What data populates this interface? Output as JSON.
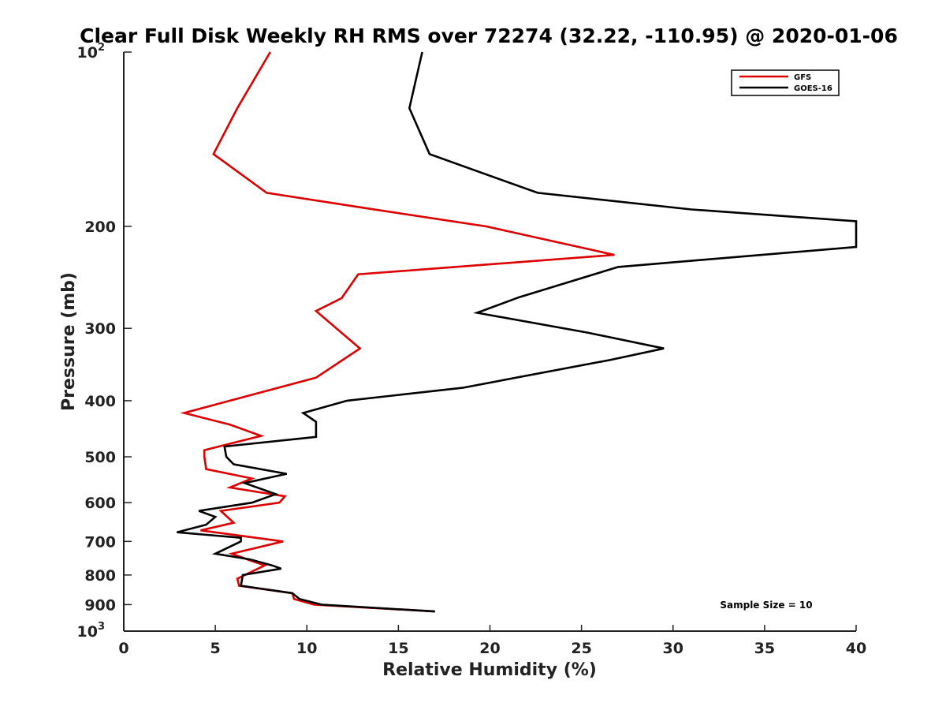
{
  "chart_data": {
    "type": "line",
    "title": "Clear Full Disk Weekly RH RMS over 72274 (32.22, -110.95) @ 2020-01-06",
    "xlabel": "Relative Humidity (%)",
    "ylabel": "Pressure (mb)",
    "xlim": [
      0,
      40
    ],
    "ylim": [
      100,
      1000
    ],
    "y_scale": "log",
    "y_reversed": true,
    "x_ticks": [
      0,
      5,
      10,
      15,
      20,
      25,
      30,
      35,
      40
    ],
    "x_tick_labels": [
      "0",
      "5",
      "10",
      "15",
      "20",
      "25",
      "30",
      "35",
      "40"
    ],
    "y_ticks": [
      {
        "value": 100,
        "label": "10",
        "sup": "2"
      },
      {
        "value": 200,
        "label": "200"
      },
      {
        "value": 300,
        "label": "300"
      },
      {
        "value": 400,
        "label": "400"
      },
      {
        "value": 500,
        "label": "500"
      },
      {
        "value": 600,
        "label": "600"
      },
      {
        "value": 700,
        "label": "700"
      },
      {
        "value": 800,
        "label": "800"
      },
      {
        "value": 900,
        "label": "900"
      },
      {
        "value": 1000,
        "label": "10",
        "sup": "3"
      }
    ],
    "legend": {
      "position": "top-right"
    },
    "annotation": "Sample Size = 10",
    "grid": false,
    "series": [
      {
        "name": "GFS",
        "color": "#dd0000",
        "points": [
          [
            8.0,
            100
          ],
          [
            6.2,
            125
          ],
          [
            4.9,
            150
          ],
          [
            7.8,
            175
          ],
          [
            13.2,
            186
          ],
          [
            19.8,
            200
          ],
          [
            26.8,
            224
          ],
          [
            12.8,
            242
          ],
          [
            11.9,
            266
          ],
          [
            10.5,
            280
          ],
          [
            12.9,
            325
          ],
          [
            10.5,
            365
          ],
          [
            5.8,
            400
          ],
          [
            3.3,
            420
          ],
          [
            5.8,
            440
          ],
          [
            7.5,
            460
          ],
          [
            4.4,
            487
          ],
          [
            4.4,
            500
          ],
          [
            4.5,
            525
          ],
          [
            7.0,
            545
          ],
          [
            5.8,
            565
          ],
          [
            8.8,
            585
          ],
          [
            8.5,
            600
          ],
          [
            5.3,
            620
          ],
          [
            6.0,
            650
          ],
          [
            4.2,
            670
          ],
          [
            8.7,
            700
          ],
          [
            5.9,
            735
          ],
          [
            6.9,
            755
          ],
          [
            7.7,
            770
          ],
          [
            6.2,
            812
          ],
          [
            6.3,
            835
          ],
          [
            9.2,
            860
          ],
          [
            9.3,
            880
          ],
          [
            10.4,
            900
          ],
          [
            17.0,
            925
          ]
        ]
      },
      {
        "name": "GOES-16",
        "color": "#000000",
        "points": [
          [
            16.3,
            100
          ],
          [
            15.6,
            125
          ],
          [
            16.7,
            150
          ],
          [
            22.6,
            175
          ],
          [
            31.0,
            187
          ],
          [
            40.0,
            196
          ],
          [
            40.0,
            217
          ],
          [
            27.0,
            235
          ],
          [
            21.6,
            265
          ],
          [
            19.3,
            282
          ],
          [
            25.3,
            305
          ],
          [
            29.5,
            325
          ],
          [
            26.6,
            340
          ],
          [
            18.5,
            380
          ],
          [
            12.2,
            400
          ],
          [
            9.8,
            420
          ],
          [
            10.5,
            435
          ],
          [
            10.5,
            462
          ],
          [
            5.5,
            480
          ],
          [
            5.6,
            500
          ],
          [
            6.0,
            515
          ],
          [
            8.9,
            535
          ],
          [
            6.6,
            555
          ],
          [
            8.3,
            580
          ],
          [
            7.0,
            600
          ],
          [
            4.1,
            620
          ],
          [
            5.0,
            635
          ],
          [
            4.5,
            655
          ],
          [
            2.9,
            675
          ],
          [
            6.4,
            690
          ],
          [
            6.4,
            700
          ],
          [
            5.0,
            735
          ],
          [
            6.9,
            752
          ],
          [
            8.1,
            770
          ],
          [
            8.6,
            780
          ],
          [
            6.5,
            800
          ],
          [
            6.4,
            835
          ],
          [
            9.2,
            860
          ],
          [
            9.6,
            880
          ],
          [
            10.8,
            900
          ],
          [
            17.0,
            925
          ]
        ]
      }
    ]
  }
}
